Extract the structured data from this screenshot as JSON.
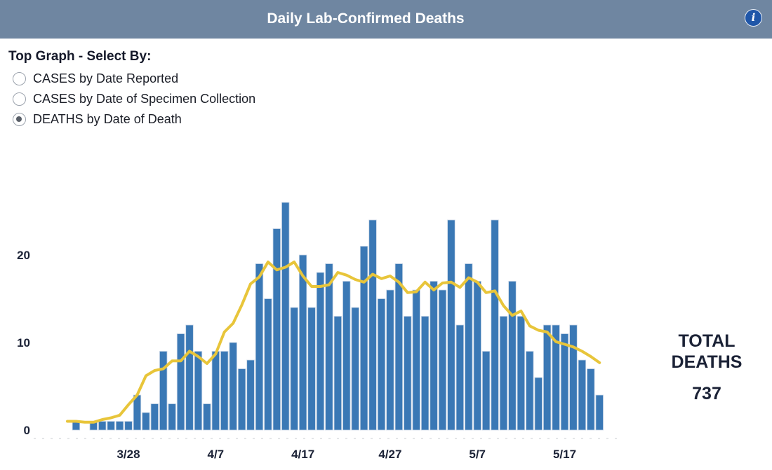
{
  "header": {
    "title": "Daily Lab-Confirmed Deaths",
    "info_icon": "info-icon",
    "info_glyph": "i"
  },
  "selector": {
    "heading": "Top Graph - Select By:",
    "options": [
      {
        "label": "CASES by Date Reported",
        "checked": false
      },
      {
        "label": "CASES by Date of Specimen Collection",
        "checked": false
      },
      {
        "label": "DEATHS by Date of Death",
        "checked": true
      }
    ]
  },
  "total": {
    "label_line1": "TOTAL",
    "label_line2": "DEATHS",
    "value": "737"
  },
  "colors": {
    "header": "#6f86a1",
    "bar": "#3a78b5",
    "average_line": "#e8c53a",
    "text": "#1b2236"
  },
  "chart_data": {
    "type": "bar",
    "start_date": "2020-03-21",
    "x_tick_labels": [
      "3/28",
      "4/7",
      "4/17",
      "4/27",
      "5/7",
      "5/17"
    ],
    "x_tick_dates": [
      "2020-03-28",
      "2020-04-07",
      "2020-04-17",
      "2020-04-27",
      "2020-05-07",
      "2020-05-17"
    ],
    "y_ticks": [
      0,
      10,
      20
    ],
    "ylim": [
      0,
      28
    ],
    "grid": false,
    "series": [
      {
        "values": [
          0,
          1,
          0,
          1,
          1,
          1,
          1,
          1,
          4,
          2,
          3,
          9,
          3,
          11,
          12,
          9,
          3,
          9,
          9,
          10,
          7,
          8,
          19,
          15,
          23,
          26,
          14,
          20,
          14,
          18,
          19,
          13,
          17,
          14,
          21,
          24,
          15,
          16,
          19,
          13,
          16,
          13,
          17,
          16,
          24,
          12,
          19,
          17,
          9,
          24,
          13,
          17,
          13,
          9,
          6,
          12,
          12,
          11,
          12,
          8,
          7,
          4
        ]
      },
      {
        "values": [
          1,
          1,
          0.9,
          0.9,
          1.2,
          1.4,
          1.7,
          2.9,
          4,
          6.2,
          6.8,
          7,
          7.9,
          7.9,
          9,
          8.4,
          7.6,
          8.7,
          11.2,
          12.2,
          14.3,
          16.7,
          17.5,
          19.2,
          18.3,
          18.6,
          19.2,
          17.6,
          16.4,
          16.4,
          16.6,
          18,
          17.7,
          17.2,
          16.9,
          17.8,
          17.3,
          17.6,
          16.9,
          15.7,
          15.8,
          16.9,
          16,
          16.8,
          16.9,
          16.3,
          17.4,
          16.9,
          15.7,
          15.9,
          14.2,
          13.1,
          13.6,
          11.9,
          11.4,
          11.2,
          10.1,
          9.8,
          9.5,
          9,
          8.4,
          7.7
        ]
      }
    ]
  }
}
